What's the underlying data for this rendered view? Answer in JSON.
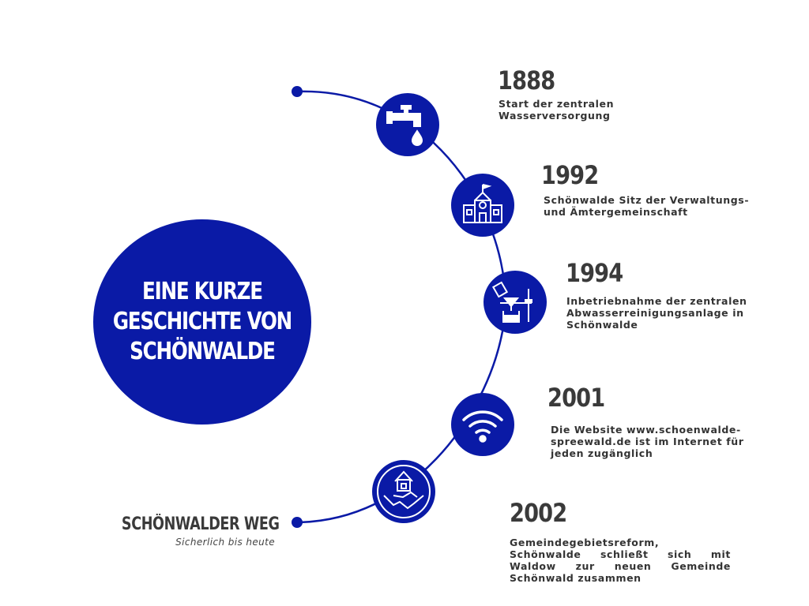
{
  "title": "EINE KURZE\nGESCHICHTE VON\nSCHÖNWALDE",
  "accent_color": "#0a1aa6",
  "weg": {
    "title": "SCHÖNWALDER WEG",
    "subtitle": "Sicherlich bis heute"
  },
  "milestones": [
    {
      "year": "1888",
      "description": "Start der zentralen\nWasserversorgung",
      "icon": "water-tap-icon"
    },
    {
      "year": "1992",
      "description": "Schönwalde Sitz der Verwaltungs-\nund Ämtergemeinschaft",
      "icon": "town-hall-icon"
    },
    {
      "year": "1994",
      "description": "Inbetriebnahme der zentralen\nAbwasserreinigungsanlage in\nSchönwalde",
      "icon": "lab-flask-icon"
    },
    {
      "year": "2001",
      "description": "Die Website www.schoenwalde-\nspreewald.de ist im Internet für\njeden zugänglich",
      "icon": "wifi-icon"
    },
    {
      "year": "2002",
      "description": "Gemeindegebietsreform, Schönwalde schließt sich mit Waldow zur neuen Gemeinde Schönwald zusammen",
      "icon": "handshake-house-icon"
    }
  ]
}
